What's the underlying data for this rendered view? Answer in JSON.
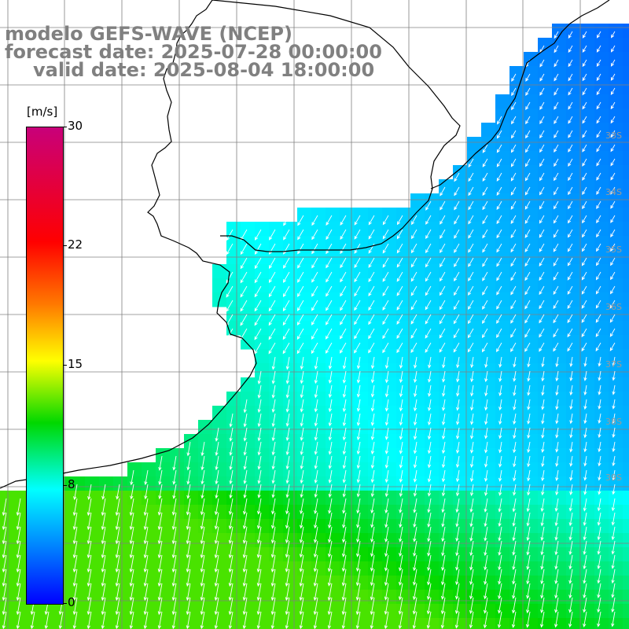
{
  "title": {
    "line1": "modelo GEFS-WAVE (NCEP)",
    "line2": "forecast date: 2025-07-28 00:00:00",
    "line3": "valid date: 2025-08-04 18:00:00"
  },
  "colorbar": {
    "unit": "[m/s]",
    "ticks": [
      "30",
      "22",
      "15",
      "8",
      "0"
    ],
    "tick_values": [
      30,
      22,
      15,
      8,
      0
    ],
    "min": 0,
    "max": 30,
    "colors": [
      "#0000ff",
      "#0078ff",
      "#00ffff",
      "#00d800",
      "#ffff00",
      "#ff7800",
      "#ff0000",
      "#c8007a"
    ]
  },
  "map": {
    "lat_labels": [
      "33S",
      "34S",
      "35S",
      "36S",
      "37S",
      "38S",
      "39S"
    ],
    "land_color": "#ffffff",
    "grid_color": "#808080",
    "arrow_color": "#ffffff",
    "coast_color": "#000000"
  }
}
